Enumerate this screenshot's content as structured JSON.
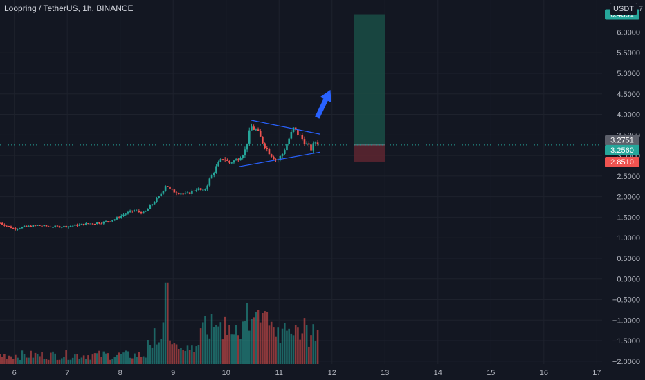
{
  "header": {
    "title": "Loopring / TetherUS, 1h, BINANCE",
    "currency": "USDT"
  },
  "colors": {
    "background": "#131722",
    "up": "#26a69a",
    "down": "#ef5350",
    "trendline": "#2962ff",
    "target_zone": "#1a4a44",
    "stop_zone": "#5a2530",
    "grid": "#1e222d"
  },
  "chart_data": {
    "type": "candlestick",
    "symbol": "Loopring / TetherUS",
    "interval": "1h",
    "exchange": "BINANCE",
    "x_ticks": [
      "6",
      "7",
      "8",
      "9",
      "10",
      "11",
      "12",
      "13",
      "14",
      "15",
      "16",
      "17"
    ],
    "x_range": [
      5.73,
      17.1
    ],
    "y_ticks": [
      "6.0000",
      "5.5000",
      "5.0000",
      "4.5000",
      "4.0000",
      "3.5000",
      "3.0000",
      "2.5000",
      "2.0000",
      "1.5000",
      "1.0000",
      "0.5000",
      "0.0000",
      "−0.5000",
      "−1.0000",
      "−1.5000",
      "−2.0000"
    ],
    "y_range": [
      -2.07,
      6.78
    ],
    "top_cut_tick": "7",
    "price_labels": [
      {
        "value": 6.4351,
        "text": "6.4351",
        "color": "#26a69a"
      },
      {
        "value": 3.2751,
        "text": "3.2751",
        "color": "#5d606b"
      },
      {
        "value": 3.256,
        "text": "3.2560",
        "color": "#26a69a"
      },
      {
        "value": 3.0,
        "text": "3.0000",
        "color": "#131722"
      },
      {
        "value": 2.851,
        "text": "2.8510",
        "color": "#ef5350"
      }
    ],
    "last_price": 3.256,
    "position": {
      "x_start": 12.42,
      "x_end": 13.0,
      "entry": 3.256,
      "target": 6.4351,
      "stop": 2.851
    },
    "triangle": {
      "upper": [
        [
          10.47,
          3.86
        ],
        [
          11.77,
          3.52
        ]
      ],
      "lower": [
        [
          10.24,
          2.73
        ],
        [
          11.77,
          3.08
        ]
      ]
    },
    "arrow": {
      "from": [
        11.72,
        3.92
      ],
      "to": [
        11.97,
        4.6
      ]
    },
    "price_series": [
      {
        "x": 5.73,
        "c": 1.36
      },
      {
        "x": 5.9,
        "c": 1.27
      },
      {
        "x": 6.0,
        "c": 1.22
      },
      {
        "x": 6.2,
        "c": 1.27
      },
      {
        "x": 6.45,
        "c": 1.3
      },
      {
        "x": 6.7,
        "c": 1.27
      },
      {
        "x": 7.0,
        "c": 1.28
      },
      {
        "x": 7.25,
        "c": 1.32
      },
      {
        "x": 7.45,
        "c": 1.35
      },
      {
        "x": 7.7,
        "c": 1.38
      },
      {
        "x": 7.9,
        "c": 1.45
      },
      {
        "x": 8.05,
        "c": 1.56
      },
      {
        "x": 8.25,
        "c": 1.66
      },
      {
        "x": 8.45,
        "c": 1.6
      },
      {
        "x": 8.6,
        "c": 1.82
      },
      {
        "x": 8.75,
        "c": 2.02
      },
      {
        "x": 8.87,
        "c": 2.32
      },
      {
        "x": 8.95,
        "c": 2.15
      },
      {
        "x": 9.1,
        "c": 2.1
      },
      {
        "x": 9.25,
        "c": 2.05
      },
      {
        "x": 9.45,
        "c": 2.2
      },
      {
        "x": 9.58,
        "c": 2.12
      },
      {
        "x": 9.7,
        "c": 2.45
      },
      {
        "x": 9.85,
        "c": 2.8
      },
      {
        "x": 9.95,
        "c": 2.95
      },
      {
        "x": 10.05,
        "c": 2.82
      },
      {
        "x": 10.2,
        "c": 2.9
      },
      {
        "x": 10.35,
        "c": 3.1
      },
      {
        "x": 10.47,
        "c": 3.7
      },
      {
        "x": 10.58,
        "c": 3.6
      },
      {
        "x": 10.7,
        "c": 3.3
      },
      {
        "x": 10.83,
        "c": 3.05
      },
      {
        "x": 10.95,
        "c": 2.88
      },
      {
        "x": 11.05,
        "c": 3.0
      },
      {
        "x": 11.15,
        "c": 3.3
      },
      {
        "x": 11.27,
        "c": 3.65
      },
      {
        "x": 11.38,
        "c": 3.5
      },
      {
        "x": 11.5,
        "c": 3.3
      },
      {
        "x": 11.6,
        "c": 3.15
      },
      {
        "x": 11.7,
        "c": 3.35
      },
      {
        "x": 11.77,
        "c": 3.26
      }
    ],
    "volume_spikes": [
      {
        "x": 8.87,
        "h": 0.82
      },
      {
        "x": 8.83,
        "h": 0.42
      },
      {
        "x": 8.66,
        "h": 0.36
      },
      {
        "x": 9.57,
        "h": 0.42
      },
      {
        "x": 9.61,
        "h": 0.48
      },
      {
        "x": 9.54,
        "h": 0.36
      },
      {
        "x": 9.73,
        "h": 0.5
      },
      {
        "x": 10.47,
        "h": 0.35
      },
      {
        "x": 10.42,
        "h": 0.3
      },
      {
        "x": 10.38,
        "h": 0.33
      },
      {
        "x": 10.5,
        "h": 0.31
      }
    ]
  }
}
